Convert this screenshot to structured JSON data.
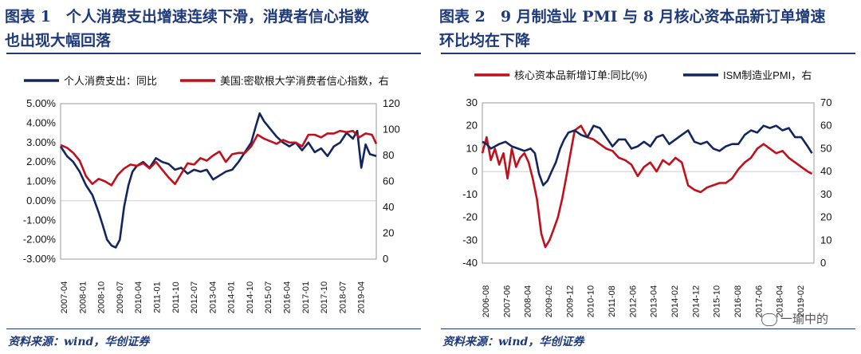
{
  "panels": [
    {
      "title_line1": "图表 1　个人消费支出增速连续下滑，消费者信心指数",
      "title_line2": "也出现大幅回落",
      "source": "资料来源：wind，华创证券"
    },
    {
      "title_line1": "图表 2　9 月制造业 PMI 与 8 月核心资本品新订单增速",
      "title_line2": "环比均在下降",
      "source": "资料来源：wind，华创证券"
    }
  ],
  "watermark": "一瑜中的",
  "chart_data": [
    {
      "type": "line",
      "title": "个人消费支出增速连续下滑，消费者信心指数也出现大幅回落",
      "x_start": 2007.25,
      "x_end": 2019.67,
      "left_axis": {
        "ylim": [
          -3,
          5
        ],
        "ticks": [
          "5.00%",
          "4.00%",
          "3.00%",
          "2.00%",
          "1.00%",
          "0.00%",
          "-1.00%",
          "-2.00%",
          "-3.00%"
        ]
      },
      "right_axis": {
        "ylim": [
          0,
          120
        ],
        "ticks": [
          "120",
          "100",
          "80",
          "60",
          "40",
          "20",
          "0"
        ]
      },
      "x_ticks": [
        "2007-04",
        "2008-01",
        "2008-10",
        "2009-07",
        "2010-04",
        "2011-01",
        "2011-10",
        "2012-07",
        "2013-04",
        "2014-01",
        "2014-10",
        "2015-07",
        "2016-04",
        "2017-01",
        "2017-10",
        "2018-07",
        "2019-04"
      ],
      "series": [
        {
          "name": "个人消费支出：同比",
          "color": "#13255e",
          "axis": "left",
          "x": [
            2007.25,
            2007.5,
            2007.75,
            2008.0,
            2008.25,
            2008.5,
            2008.75,
            2008.92,
            2009.08,
            2009.25,
            2009.42,
            2009.58,
            2009.75,
            2009.92,
            2010.08,
            2010.25,
            2010.5,
            2010.75,
            2011.0,
            2011.25,
            2011.5,
            2011.75,
            2012.0,
            2012.25,
            2012.5,
            2012.75,
            2013.0,
            2013.25,
            2013.5,
            2013.75,
            2014.0,
            2014.25,
            2014.5,
            2014.75,
            2014.92,
            2015.08,
            2015.25,
            2015.5,
            2015.75,
            2016.0,
            2016.25,
            2016.5,
            2016.75,
            2017.0,
            2017.25,
            2017.5,
            2017.75,
            2018.0,
            2018.25,
            2018.5,
            2018.75,
            2018.92,
            2019.08,
            2019.25,
            2019.42,
            2019.67
          ],
          "values": [
            2.8,
            2.3,
            2.0,
            1.5,
            0.8,
            0.3,
            -0.6,
            -1.3,
            -2.0,
            -2.3,
            -2.4,
            -2.0,
            -0.3,
            0.8,
            1.5,
            1.8,
            2.0,
            1.7,
            2.2,
            2.0,
            1.9,
            1.6,
            1.7,
            1.4,
            1.6,
            1.5,
            1.6,
            1.1,
            1.3,
            1.5,
            1.6,
            2.0,
            2.5,
            3.0,
            3.8,
            4.5,
            4.1,
            3.7,
            3.3,
            3.0,
            2.8,
            3.0,
            2.6,
            3.0,
            2.5,
            2.7,
            2.3,
            2.8,
            3.0,
            3.5,
            3.2,
            3.6,
            1.7,
            2.9,
            2.4,
            2.3
          ]
        },
        {
          "name": "美国:密歇根大学消费者信心指数，右",
          "color": "#c0101c",
          "axis": "right",
          "x": [
            2007.25,
            2007.5,
            2007.75,
            2008.0,
            2008.25,
            2008.5,
            2008.75,
            2009.0,
            2009.25,
            2009.5,
            2009.75,
            2010.0,
            2010.25,
            2010.5,
            2010.75,
            2011.0,
            2011.25,
            2011.5,
            2011.75,
            2012.0,
            2012.25,
            2012.5,
            2012.75,
            2013.0,
            2013.25,
            2013.5,
            2013.75,
            2014.0,
            2014.25,
            2014.5,
            2014.75,
            2015.0,
            2015.25,
            2015.5,
            2015.75,
            2016.0,
            2016.25,
            2016.5,
            2016.75,
            2017.0,
            2017.25,
            2017.5,
            2017.75,
            2018.0,
            2018.25,
            2018.5,
            2018.75,
            2019.0,
            2019.25,
            2019.5,
            2019.67
          ],
          "values": [
            88,
            86,
            82,
            76,
            64,
            58,
            62,
            60,
            57,
            65,
            70,
            73,
            72,
            74,
            70,
            75,
            69,
            63,
            58,
            66,
            74,
            73,
            78,
            76,
            80,
            83,
            75,
            81,
            82,
            82,
            87,
            96,
            93,
            91,
            89,
            92,
            90,
            90,
            87,
            96,
            96,
            94,
            97,
            97,
            99,
            98,
            99,
            94,
            97,
            96,
            89
          ]
        }
      ],
      "legend": [
        "个人消费支出：同比",
        "美国:密歇根大学消费者信心指数，右"
      ]
    },
    {
      "type": "line",
      "title": "9月制造业PMI与8月核心资本品新订单增速环比均在下降",
      "x_start": 2006.58,
      "x_end": 2019.75,
      "left_axis": {
        "ylim": [
          -40,
          30
        ],
        "ticks": [
          "30",
          "20",
          "10",
          "0",
          "-10",
          "-20",
          "-30",
          "-40"
        ]
      },
      "right_axis": {
        "ylim": [
          0,
          70
        ],
        "ticks": [
          "70",
          "60",
          "50",
          "40",
          "30",
          "20",
          "10",
          "0"
        ]
      },
      "x_ticks": [
        "2006-08",
        "2007-06",
        "2008-04",
        "2009-02",
        "2009-12",
        "2010-10",
        "2011-08",
        "2012-06",
        "2013-04",
        "2014-02",
        "2014-12",
        "2015-10",
        "2016-08",
        "2017-06",
        "2018-04",
        "2019-02"
      ],
      "series": [
        {
          "name": "核心资本品新增订单:同比(%)",
          "color": "#c0101c",
          "axis": "left",
          "x": [
            2006.58,
            2006.75,
            2006.92,
            2007.08,
            2007.25,
            2007.42,
            2007.58,
            2007.75,
            2007.92,
            2008.08,
            2008.25,
            2008.42,
            2008.58,
            2008.75,
            2008.92,
            2009.08,
            2009.25,
            2009.42,
            2009.58,
            2009.75,
            2009.92,
            2010.08,
            2010.25,
            2010.5,
            2010.75,
            2011.0,
            2011.25,
            2011.5,
            2011.75,
            2012.0,
            2012.25,
            2012.5,
            2012.75,
            2013.0,
            2013.25,
            2013.5,
            2013.75,
            2014.0,
            2014.25,
            2014.5,
            2014.75,
            2015.0,
            2015.25,
            2015.5,
            2015.75,
            2016.0,
            2016.25,
            2016.5,
            2016.75,
            2017.0,
            2017.25,
            2017.5,
            2017.75,
            2018.0,
            2018.25,
            2018.5,
            2018.75,
            2019.0,
            2019.25,
            2019.5,
            2019.67
          ],
          "values": [
            8,
            15,
            5,
            10,
            3,
            8,
            -3,
            10,
            2,
            6,
            8,
            4,
            -3,
            -12,
            -27,
            -33,
            -30,
            -25,
            -20,
            -12,
            -2,
            8,
            18,
            20,
            15,
            14,
            12,
            10,
            9,
            6,
            5,
            3,
            -2,
            2,
            4,
            0,
            5,
            3,
            6,
            4,
            -6,
            -8,
            -9,
            -7,
            -6,
            -5,
            -5,
            -3,
            1,
            4,
            6,
            10,
            12,
            10,
            8,
            9,
            6,
            4,
            2,
            0,
            -1
          ]
        },
        {
          "name": "ISM制造业PMI，右",
          "color": "#13255e",
          "axis": "right",
          "x": [
            2006.58,
            2006.75,
            2006.92,
            2007.08,
            2007.25,
            2007.5,
            2007.75,
            2008.0,
            2008.25,
            2008.5,
            2008.67,
            2008.83,
            2009.0,
            2009.17,
            2009.33,
            2009.5,
            2009.67,
            2009.83,
            2010.0,
            2010.25,
            2010.5,
            2010.75,
            2011.0,
            2011.25,
            2011.5,
            2011.75,
            2012.0,
            2012.25,
            2012.5,
            2012.75,
            2013.0,
            2013.25,
            2013.5,
            2013.75,
            2014.0,
            2014.25,
            2014.5,
            2014.75,
            2015.0,
            2015.25,
            2015.5,
            2015.75,
            2016.0,
            2016.25,
            2016.5,
            2016.75,
            2017.0,
            2017.25,
            2017.5,
            2017.75,
            2018.0,
            2018.25,
            2018.5,
            2018.75,
            2019.0,
            2019.25,
            2019.5,
            2019.67
          ],
          "values": [
            53,
            52,
            50,
            51,
            52,
            53,
            51,
            50,
            49,
            50,
            48,
            39,
            34,
            36,
            40,
            44,
            50,
            54,
            57,
            58,
            56,
            55,
            60,
            59,
            55,
            51,
            54,
            54,
            50,
            51,
            53,
            51,
            55,
            56,
            52,
            54,
            56,
            58,
            53,
            52,
            53,
            50,
            49,
            51,
            52,
            52,
            56,
            58,
            57,
            60,
            59,
            60,
            58,
            59,
            55,
            55,
            51,
            48
          ]
        }
      ],
      "legend": [
        "核心资本品新增订单:同比(%)",
        "ISM制造业PMI，右"
      ]
    }
  ]
}
